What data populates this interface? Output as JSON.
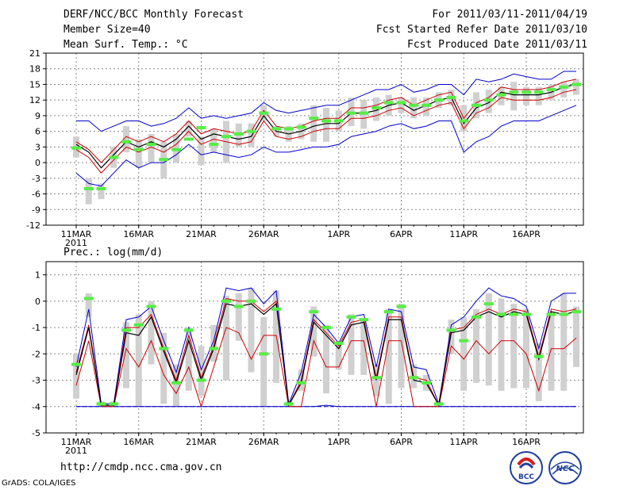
{
  "header": {
    "title": "DERF/NCC/BCC Monthly Forecast",
    "member_size": "Member Size=40",
    "variable": "Mean Surf. Temp.: °C",
    "period": "For 2011/03/11-2011/04/19",
    "refer_date": "Fcst Started Refer Date 2011/03/10",
    "produced_date": "Fcst Produced Date 2011/03/11"
  },
  "footer": {
    "url": "http://cmdp.ncc.cma.gov.cn",
    "grads": "GrADS: COLA/IGES",
    "logo_bcc": "BCC",
    "logo_ncc": "NCC"
  },
  "colors": {
    "envelope": "#0000cc",
    "band": "#cc0000",
    "mean": "#000000",
    "observed": "#55ee44",
    "spread": "#d0d0d0",
    "baseline": "#0000cc"
  },
  "chart_data": [
    {
      "type": "line",
      "title": "Mean Surf. Temp.: °C",
      "ylim": [
        -12,
        21
      ],
      "yticks": [
        -12,
        -9,
        -6,
        -3,
        0,
        3,
        6,
        9,
        12,
        15,
        18,
        21
      ],
      "x_ticks": [
        {
          "day": 0,
          "label": "11MAR",
          "sub": "2011"
        },
        {
          "day": 5,
          "label": "16MAR"
        },
        {
          "day": 10,
          "label": "21MAR"
        },
        {
          "day": 15,
          "label": "26MAR"
        },
        {
          "day": 21,
          "label": "1APR"
        },
        {
          "day": 26,
          "label": "6APR"
        },
        {
          "day": 31,
          "label": "11APR"
        },
        {
          "day": 36,
          "label": "16APR"
        }
      ],
      "series": [
        {
          "name": "max",
          "values": [
            8,
            8,
            6,
            7,
            8,
            8,
            7,
            7.5,
            8.5,
            10.5,
            8.5,
            9,
            8.5,
            9,
            9.5,
            11.5,
            10,
            9.5,
            10,
            10.5,
            11,
            11,
            12,
            13,
            14,
            14,
            15,
            13.5,
            14,
            15,
            15,
            13,
            16,
            15.5,
            16,
            17,
            16.5,
            16,
            16,
            17.5,
            17.5
          ]
        },
        {
          "name": "upper",
          "values": [
            4,
            2.5,
            0,
            2.5,
            5,
            4,
            5,
            4,
            5.5,
            8,
            5.5,
            6.5,
            6,
            5.5,
            6,
            10,
            7,
            6.5,
            7,
            8,
            8.5,
            8.5,
            10.5,
            10.5,
            11,
            12,
            12.5,
            11,
            12,
            13,
            13.5,
            8.5,
            11.5,
            12.5,
            14.5,
            14,
            14,
            14,
            14.5,
            15.5,
            16
          ]
        },
        {
          "name": "mean",
          "values": [
            3.5,
            2,
            -1,
            1.5,
            4,
            3,
            4,
            3,
            4.5,
            7,
            4.5,
            5.5,
            5,
            4.5,
            5,
            9,
            6,
            5.5,
            6,
            7,
            7.5,
            7.5,
            9.5,
            9.5,
            10,
            11,
            11.5,
            10,
            11,
            12,
            12.5,
            7.5,
            10.5,
            11.5,
            13.5,
            13,
            13,
            13,
            13.5,
            14.5,
            15
          ]
        },
        {
          "name": "lower",
          "values": [
            2.5,
            1,
            -2,
            0.5,
            3,
            2,
            3,
            2,
            3.5,
            6,
            3.5,
            4.5,
            4,
            3.5,
            4,
            8,
            5,
            4.5,
            5,
            6,
            6.5,
            6.5,
            8.5,
            8.5,
            9,
            10,
            10.5,
            9,
            10,
            11,
            11.5,
            6.5,
            9.5,
            10.5,
            12.5,
            12,
            12,
            12,
            12.5,
            13.5,
            14
          ]
        },
        {
          "name": "min",
          "values": [
            -2,
            -4,
            -4.5,
            -2,
            0.5,
            -1,
            0,
            0,
            1.5,
            3.5,
            1.5,
            2,
            1.5,
            1,
            1.5,
            3,
            2,
            2,
            2.5,
            3,
            3,
            3.5,
            5,
            5.5,
            6,
            7,
            7.5,
            6.5,
            7,
            8,
            8,
            2,
            4,
            5,
            7,
            8,
            8,
            8,
            9,
            10,
            11
          ]
        },
        {
          "name": "observed",
          "values": [
            2.8,
            -5,
            -5,
            1,
            4,
            2.5,
            3.5,
            0.6,
            2.5,
            4.5,
            6.7,
            3.5,
            5,
            5.5,
            6,
            9.5,
            6.5,
            6.5,
            6.8,
            8.5,
            8,
            8,
            9.5,
            9.5,
            10.5,
            11.5,
            11.5,
            11,
            11,
            12,
            12.5,
            8,
            11,
            12,
            13,
            13.5,
            13.5,
            13.5,
            14,
            14.5,
            15
          ]
        },
        {
          "name": "spread_low",
          "values": [
            1,
            -8,
            -7,
            -1,
            2,
            -1,
            0,
            -3,
            0,
            5,
            -0.5,
            2,
            0,
            3,
            3,
            8,
            5,
            4,
            4.5,
            4,
            4,
            6,
            7,
            6.5,
            8,
            9,
            9.5,
            8.5,
            9,
            10.5,
            11,
            6,
            8.5,
            9.5,
            11,
            10,
            11,
            11,
            12,
            12.5,
            13
          ]
        },
        {
          "name": "spread_high",
          "values": [
            5,
            -3,
            -4,
            3,
            7,
            4.5,
            5.5,
            4,
            5.5,
            8,
            5,
            6.5,
            8,
            7.5,
            7.5,
            11,
            7,
            7,
            7.5,
            11,
            10.5,
            10,
            12.5,
            12,
            12.5,
            13,
            12.5,
            12.5,
            12.5,
            13.5,
            14,
            11,
            13.5,
            14,
            14.5,
            15.5,
            14.5,
            14.5,
            15,
            15.5,
            16
          ]
        }
      ]
    },
    {
      "type": "line",
      "title": "Prec.: log(mm/d)",
      "ylim": [
        -5,
        1.5
      ],
      "yticks": [
        -5,
        -4,
        -3,
        -2,
        -1,
        0,
        1
      ],
      "x_ticks": [
        {
          "day": 0,
          "label": "11MAR",
          "sub": "2011"
        },
        {
          "day": 5,
          "label": "16MAR"
        },
        {
          "day": 10,
          "label": "21MAR"
        },
        {
          "day": 15,
          "label": "26MAR"
        },
        {
          "day": 21,
          "label": "1APR"
        },
        {
          "day": 26,
          "label": "6APR"
        },
        {
          "day": 31,
          "label": "11APR"
        },
        {
          "day": 36,
          "label": "16APR"
        }
      ],
      "baseline": -4,
      "series": [
        {
          "name": "max",
          "values": [
            -2.5,
            -0.3,
            -3.9,
            -3.9,
            -0.7,
            -0.6,
            -0.2,
            -1.5,
            -2.7,
            -1,
            -2.6,
            -1.5,
            0.5,
            0.4,
            0.5,
            -0.1,
            0.4,
            -3.9,
            -2.7,
            -0.5,
            -1,
            -1.6,
            -0.6,
            -0.5,
            -2.5,
            -0.3,
            -0.4,
            -2.5,
            -2.6,
            -3.9,
            -0.9,
            -0.6,
            0,
            0.5,
            0.2,
            0.1,
            -0.2,
            -1.8,
            0,
            0.3,
            0.3
          ]
        },
        {
          "name": "upper",
          "values": [
            -2.7,
            -0.9,
            -3.95,
            -3.95,
            -1,
            -1,
            -0.5,
            -1.8,
            -3,
            -1.3,
            -2.9,
            -1.7,
            0.1,
            0,
            0,
            -0.4,
            0,
            -3.95,
            -3,
            -0.7,
            -1.2,
            -1.7,
            -0.8,
            -0.7,
            -2.9,
            -0.6,
            -0.6,
            -2.9,
            -3,
            -3.95,
            -1.1,
            -1,
            -0.5,
            -0.3,
            -0.5,
            -0.3,
            -0.4,
            -2.1,
            -0.3,
            -0.4,
            -0.3
          ]
        },
        {
          "name": "mean",
          "values": [
            -2.8,
            -1,
            -3.95,
            -3.95,
            -1.2,
            -1.3,
            -0.6,
            -1.9,
            -3.1,
            -1.5,
            -3,
            -1.8,
            -0.1,
            -0.2,
            -0.1,
            -0.5,
            -0.1,
            -3.95,
            -3.1,
            -0.8,
            -1.3,
            -1.8,
            -0.9,
            -0.8,
            -3,
            -0.7,
            -0.7,
            -3,
            -3.1,
            -3.95,
            -1.2,
            -1.1,
            -0.6,
            -0.4,
            -0.6,
            -0.4,
            -0.5,
            -2.2,
            -0.4,
            -0.5,
            -0.4
          ]
        },
        {
          "name": "lower",
          "values": [
            -3.2,
            -1.5,
            -4,
            -4,
            -1.8,
            -2.5,
            -1.5,
            -2.8,
            -3.5,
            -2.5,
            -4,
            -2.5,
            -1,
            -1.2,
            -2.2,
            -1.3,
            -1.3,
            -4,
            -4,
            -1.5,
            -2.5,
            -2.5,
            -1.5,
            -1.5,
            -4,
            -1.5,
            -1.5,
            -4,
            -4,
            -4,
            -1.7,
            -2.2,
            -1.5,
            -2,
            -1.5,
            -1.5,
            -2,
            -3.4,
            -1.8,
            -1.8,
            -1.4
          ]
        },
        {
          "name": "min",
          "values": [
            -4,
            -4,
            -4,
            -4,
            -4,
            -4,
            -4,
            -4,
            -4,
            -4,
            -4,
            -4,
            -4,
            -4,
            -4,
            -4,
            -4,
            -4,
            -4,
            -4,
            -3.95,
            -4,
            -4,
            -4,
            -4,
            -4,
            -4,
            -4,
            -4,
            -4,
            -4,
            -4,
            -4,
            -4,
            -4,
            -4,
            -4,
            -4,
            -4,
            -4,
            -4
          ]
        },
        {
          "name": "observed",
          "values": [
            -2.4,
            0.1,
            -3.9,
            -3.9,
            -1.1,
            -0.9,
            -0.2,
            -1.8,
            -3.1,
            -1.1,
            -3,
            -1.8,
            0,
            -0.2,
            0,
            -2,
            -0.3,
            -3.9,
            -3.1,
            -0.4,
            -1,
            -1.6,
            -0.6,
            -0.7,
            -2.9,
            -0.4,
            -0.2,
            -2.9,
            -3.1,
            -3.9,
            -1.1,
            -1.5,
            -0.6,
            -0.1,
            -0.5,
            -0.5,
            -0.5,
            -2.1,
            -0.5,
            -0.5,
            -0.4
          ]
        },
        {
          "name": "spread_low",
          "values": [
            -3.7,
            -0.6,
            -4,
            -4,
            -3.3,
            -4,
            -2.4,
            -3.9,
            -4,
            -3.4,
            -3.6,
            -2.3,
            -3,
            -1.5,
            -2.7,
            -4,
            -3.1,
            -4,
            -3.4,
            -2.1,
            -3.5,
            -2.6,
            -2.8,
            -2.8,
            -3.6,
            -3.9,
            -3.3,
            -3.3,
            -3.4,
            -4,
            -2,
            -3.4,
            -3.1,
            -3.2,
            -3.4,
            -3.3,
            -3.3,
            -3.8,
            -3.4,
            -3.4,
            -2.5
          ]
        },
        {
          "name": "spread_high",
          "values": [
            -2,
            0.3,
            -3.8,
            -3.8,
            -0.8,
            -0.5,
            0,
            -1.2,
            -2.4,
            -1,
            -1.7,
            -0.9,
            0.2,
            0.3,
            0.5,
            -0.6,
            0.4,
            -3.8,
            -2.6,
            -0.2,
            -0.9,
            -1.6,
            -0.5,
            -0.7,
            -2.4,
            -0.3,
            -0.1,
            -2.4,
            -2.8,
            -3.8,
            -0.7,
            -0.6,
            -0.3,
            0.3,
            0.1,
            -0.1,
            -0.3,
            -1.6,
            -0.4,
            0.3,
            -0.2
          ]
        }
      ]
    }
  ]
}
